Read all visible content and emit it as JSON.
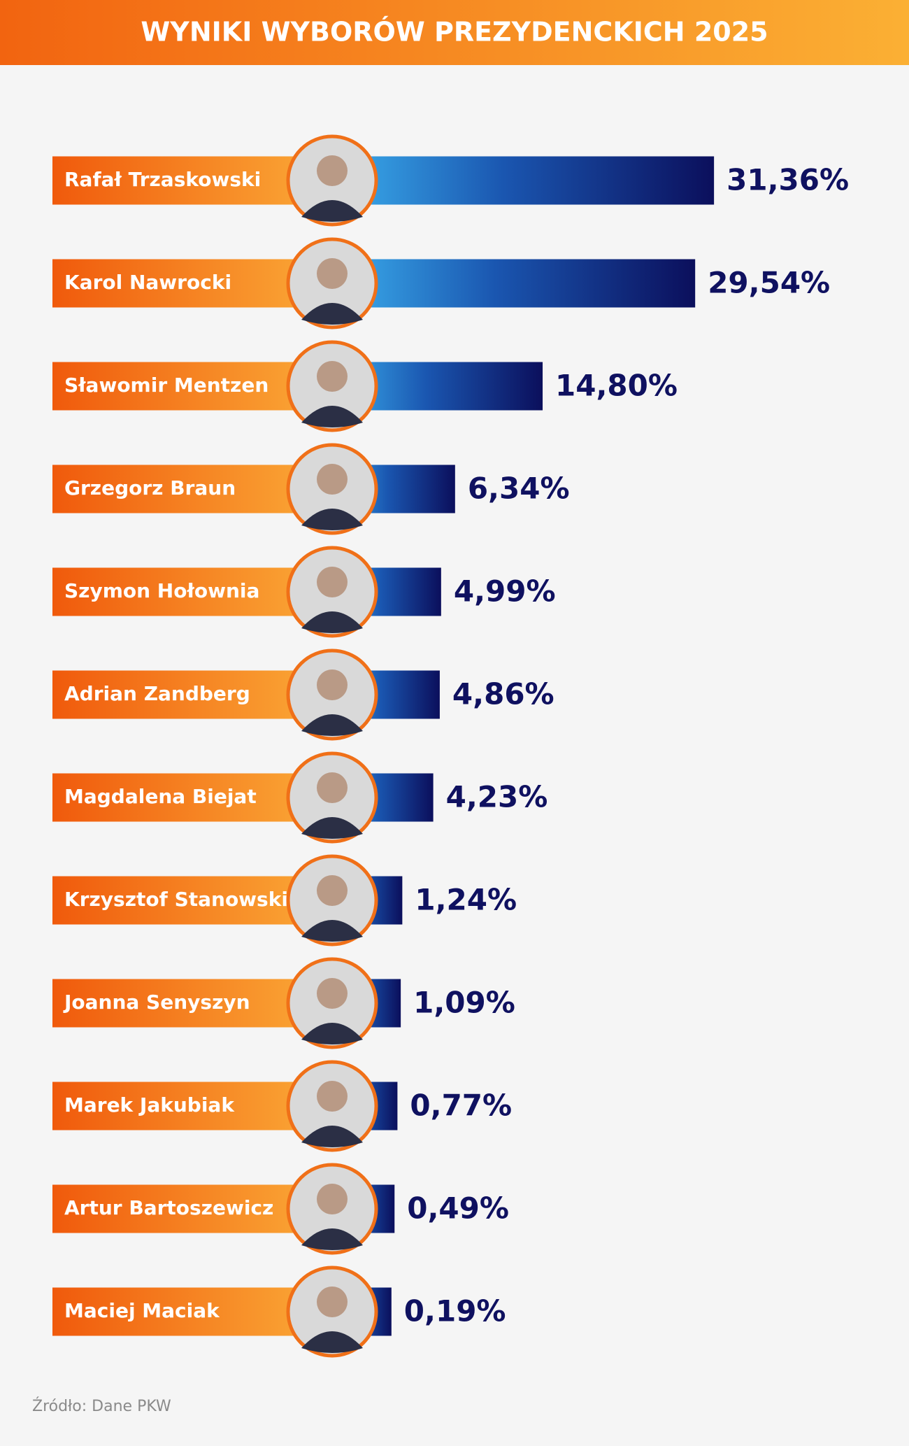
{
  "chart_data": {
    "type": "bar",
    "orientation": "horizontal",
    "title": "WYNIKI WYBORÓW PREZYDENCKICH 2025",
    "categories": [
      "Rafał Trzaskowski",
      "Karol Nawrocki",
      "Sławomir Mentzen",
      "Grzegorz Braun",
      "Szymon Hołownia",
      "Adrian Zandberg",
      "Magdalena Biejat",
      "Krzysztof Stanowski",
      "Joanna Senyszyn",
      "Marek Jakubiak",
      "Artur Bartoszewicz",
      "Maciej Maciak"
    ],
    "values": [
      31.36,
      29.54,
      14.8,
      6.34,
      4.99,
      4.86,
      4.23,
      1.24,
      1.09,
      0.77,
      0.49,
      0.19
    ],
    "value_labels": [
      "31,36%",
      "29,54%",
      "14,80%",
      "6,34%",
      "4,99%",
      "4,86%",
      "4,23%",
      "1,24%",
      "1,09%",
      "0,77%",
      "0,49%",
      "0,19%"
    ],
    "source": "Źródło: Dane PKW"
  }
}
